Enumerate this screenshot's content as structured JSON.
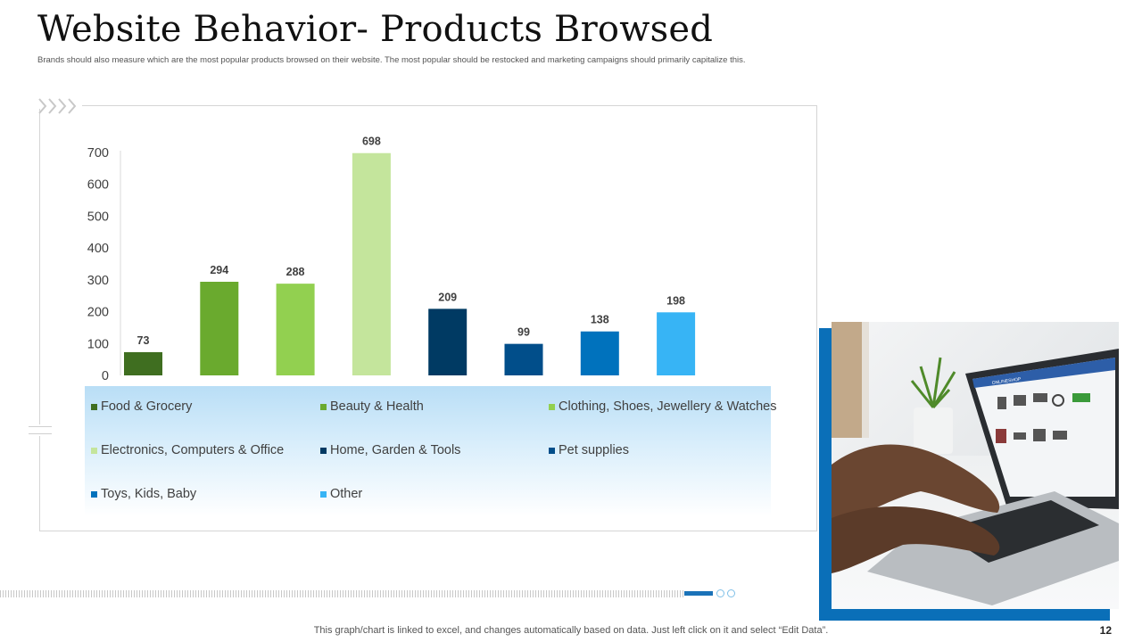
{
  "slide": {
    "title": "Website Behavior- Products Browsed",
    "subtitle": "Brands should also measure which are the most popular products browsed on their website. The most popular should be restocked and marketing campaigns should primarily capitalize this.",
    "footnote": "This graph/chart is linked to excel,  and changes automatically based on data. Just left click on it and select “Edit Data”.",
    "page_number": "12"
  },
  "photo": {
    "screen_site_label": "ONLINESHOP",
    "frame_color": "#0a6fb8"
  },
  "chart_data": {
    "type": "bar",
    "categories": [
      "Food & Grocery",
      "Beauty & Health",
      "Clothing, Shoes, Jewellery & Watches",
      "Electronics, Computers & Office",
      "Home, Garden & Tools",
      "Pet supplies",
      "Toys, Kids, Baby",
      "Other"
    ],
    "values": [
      73,
      294,
      288,
      698,
      209,
      99,
      138,
      198
    ],
    "colors": [
      "#3f6e20",
      "#6aaa2e",
      "#92d050",
      "#c4e59c",
      "#003a63",
      "#014e8a",
      "#0072bd",
      "#37b4f5"
    ],
    "ylim": [
      0,
      700
    ],
    "yticks": [
      0,
      100,
      200,
      300,
      400,
      500,
      600,
      700
    ],
    "legend_position": "bottom",
    "grid": false
  }
}
